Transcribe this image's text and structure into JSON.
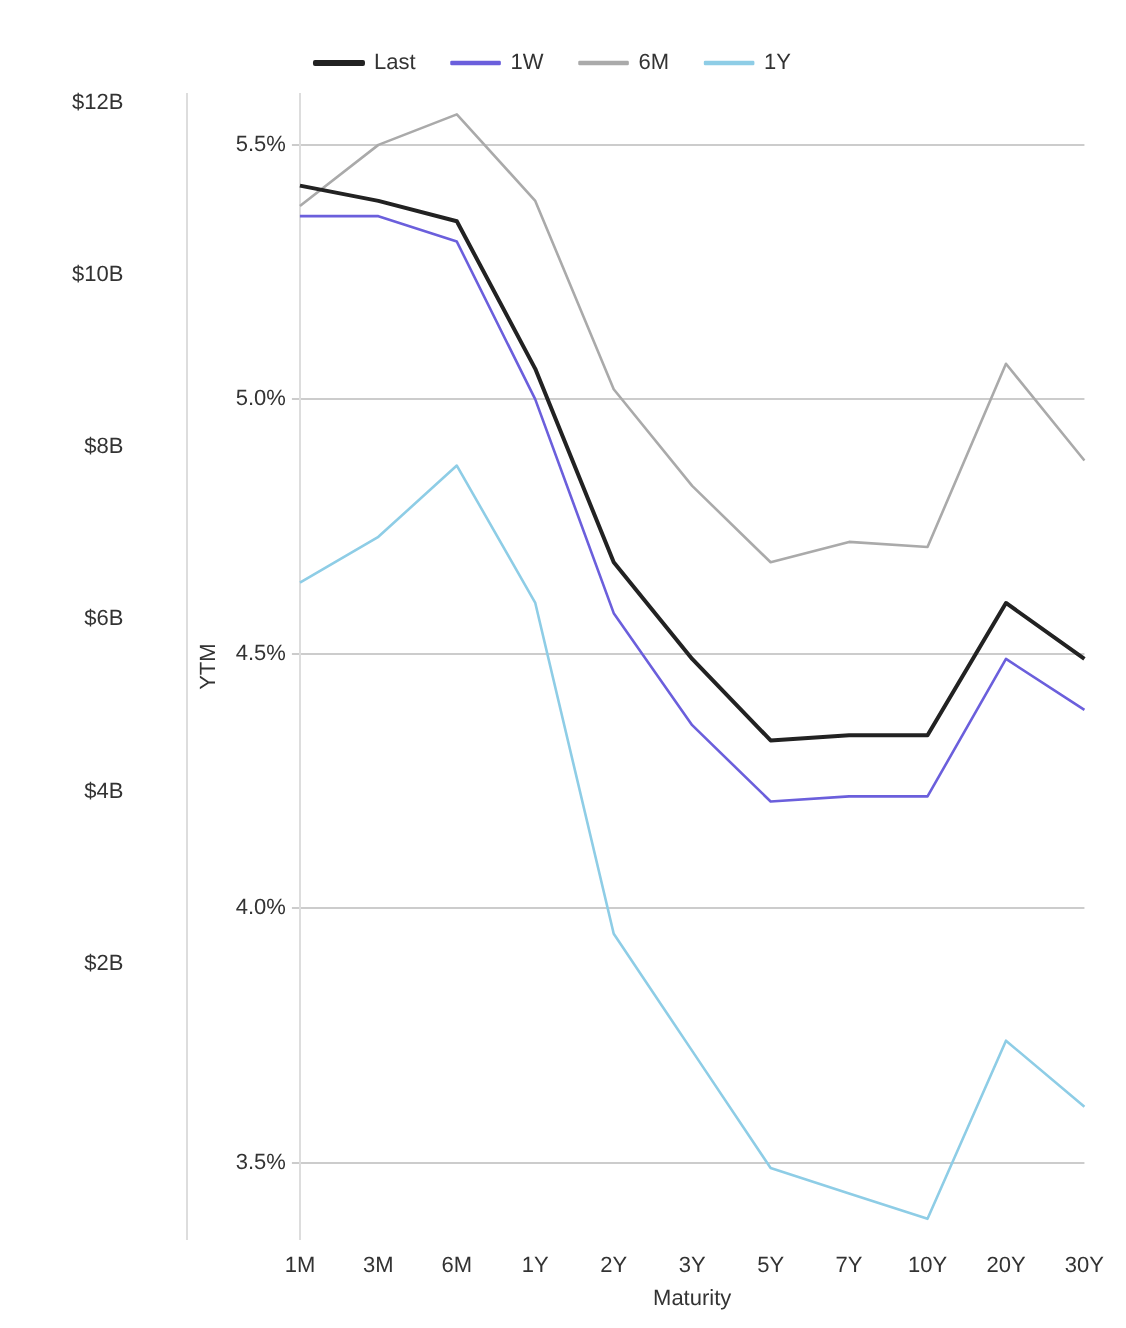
{
  "chart_data": {
    "type": "line",
    "xlabel": "Maturity",
    "ylabel": "YTM",
    "categories": [
      "1M",
      "3M",
      "6M",
      "1Y",
      "2Y",
      "3Y",
      "5Y",
      "7Y",
      "10Y",
      "20Y",
      "30Y"
    ],
    "series": [
      {
        "name": "Last",
        "color": "#222222",
        "values": [
          5.42,
          5.39,
          5.35,
          5.06,
          4.68,
          4.49,
          4.33,
          4.34,
          4.34,
          4.6,
          4.49
        ]
      },
      {
        "name": "1W",
        "color": "#6b5fdc",
        "values": [
          5.36,
          5.36,
          5.31,
          5.0,
          4.58,
          4.36,
          4.21,
          4.22,
          4.22,
          4.49,
          4.39
        ]
      },
      {
        "name": "6M",
        "color": "#aaaaaa",
        "values": [
          5.38,
          5.5,
          5.56,
          5.39,
          5.02,
          4.83,
          4.68,
          4.72,
          4.71,
          5.07,
          4.88
        ]
      },
      {
        "name": "1Y",
        "color": "#8ecde6",
        "values": [
          4.64,
          4.73,
          4.87,
          4.6,
          3.95,
          3.72,
          3.49,
          3.44,
          3.39,
          3.74,
          3.61
        ]
      }
    ],
    "ylim": [
      3.35,
      5.6
    ],
    "yticks": [
      {
        "value": 3.5,
        "label": "3.5%"
      },
      {
        "value": 4.0,
        "label": "4.0%"
      },
      {
        "value": 4.5,
        "label": "4.5%"
      },
      {
        "value": 5.0,
        "label": "5.0%"
      },
      {
        "value": 5.5,
        "label": "5.5%"
      }
    ],
    "y2lim": [
      -1.2,
      12.1
    ],
    "y2ticks": [
      {
        "value": 2,
        "label": "$2B"
      },
      {
        "value": 4,
        "label": "$4B"
      },
      {
        "value": 6,
        "label": "$6B"
      },
      {
        "value": 8,
        "label": "$8B"
      },
      {
        "value": 10,
        "label": "$10B"
      },
      {
        "value": 12,
        "label": "$12B"
      }
    ],
    "grid": "y",
    "legend": "top",
    "marker": "none",
    "line_style": "solid"
  }
}
